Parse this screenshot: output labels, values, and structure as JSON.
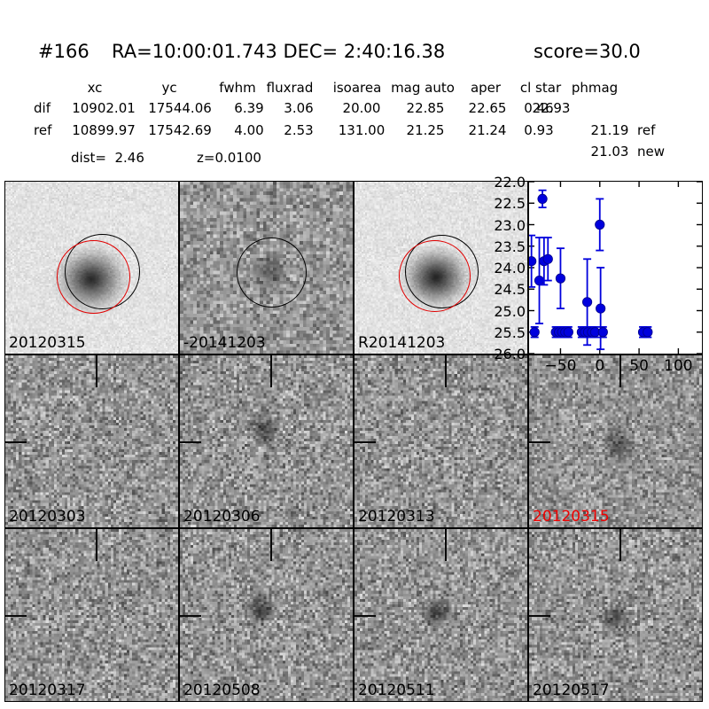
{
  "header": {
    "object_id": "#166",
    "coords": "RA=10:00:01.743 DEC= 2:40:16.38",
    "score": "score=30.0"
  },
  "photometry": {
    "columns": [
      "xc",
      "yc",
      "fwhm",
      "fluxrad",
      "isoarea",
      "mag auto",
      "aper",
      "cl star",
      "phmag"
    ],
    "rows": [
      {
        "label": "dif",
        "cells": [
          "10902.01",
          "17544.06",
          "6.39",
          "3.06",
          "20.00",
          "22.85",
          "22.65",
          "0.46",
          "22.93"
        ],
        "suffix": ""
      },
      {
        "label": "ref",
        "cells": [
          "10899.97",
          "17542.69",
          "4.00",
          "2.53",
          "131.00",
          "21.25",
          "21.24",
          "0.93",
          "21.19"
        ],
        "suffix": "ref"
      }
    ],
    "extra_phmag": {
      "value": "21.03",
      "suffix": "new"
    },
    "dist": "dist=  2.46",
    "z": "z=0.0100"
  },
  "panels": [
    {
      "label": "20120315",
      "label_color": "#000000",
      "kind": "new-image"
    },
    {
      "label": "-20141203",
      "label_color": "#000000",
      "kind": "difference-image"
    },
    {
      "label": "R20141203",
      "label_color": "#000000",
      "kind": "reference-image"
    },
    {
      "label": "",
      "label_color": "#000000",
      "kind": "lightcurve-plot"
    },
    {
      "label": "20120303",
      "label_color": "#000000",
      "kind": "epoch-cutout"
    },
    {
      "label": "20120306",
      "label_color": "#000000",
      "kind": "epoch-cutout"
    },
    {
      "label": "20120313",
      "label_color": "#000000",
      "kind": "epoch-cutout"
    },
    {
      "label": "20120315",
      "label_color": "#ee0000",
      "kind": "epoch-cutout-detection"
    },
    {
      "label": "20120317",
      "label_color": "#000000",
      "kind": "epoch-cutout"
    },
    {
      "label": "20120508",
      "label_color": "#000000",
      "kind": "epoch-cutout"
    },
    {
      "label": "20120511",
      "label_color": "#000000",
      "kind": "epoch-cutout"
    },
    {
      "label": "20120517",
      "label_color": "#000000",
      "kind": "epoch-cutout"
    }
  ],
  "chart_data": {
    "type": "scatter",
    "title": "",
    "xlabel": "",
    "ylabel": "",
    "xlim": [
      -90,
      130
    ],
    "ylim": [
      22.0,
      26.0
    ],
    "y_inverted": true,
    "grid": false,
    "legend": "none",
    "xticks": [
      -50,
      0,
      50,
      100
    ],
    "xtick_labels": [
      "−50",
      "0",
      "50",
      "100"
    ],
    "yticks": [
      22.0,
      22.5,
      23.0,
      23.5,
      24.0,
      24.5,
      25.0,
      25.5,
      26.0
    ],
    "ytick_labels": [
      "22.0",
      "22.5",
      "23.0",
      "23.5",
      "24.0",
      "24.5",
      "25.0",
      "25.5",
      "26.0"
    ],
    "marker_color": "#0000dd",
    "marker_edge": "#000088",
    "series": [
      {
        "name": "detections",
        "points": [
          [
            -87,
            23.85,
            0.6
          ],
          [
            -77,
            24.3,
            1.0
          ],
          [
            -73,
            22.4,
            0.2
          ],
          [
            -71,
            23.85,
            0.55
          ],
          [
            -66,
            23.8,
            0.5
          ],
          [
            -50,
            24.25,
            0.7
          ],
          [
            -16,
            24.8,
            1.0
          ],
          [
            0,
            23.0,
            0.6
          ],
          [
            1,
            24.95,
            0.95
          ]
        ]
      },
      {
        "name": "faint-limits",
        "points": [
          [
            -83,
            25.5,
            0.12
          ],
          [
            -56,
            25.5,
            0.12
          ],
          [
            -52,
            25.5,
            0.12
          ],
          [
            -48,
            25.5,
            0.12
          ],
          [
            -44,
            25.5,
            0.12
          ],
          [
            -40,
            25.5,
            0.12
          ],
          [
            -23,
            25.5,
            0.12
          ],
          [
            -19,
            25.5,
            0.12
          ],
          [
            -15,
            25.5,
            0.12
          ],
          [
            -10,
            25.5,
            0.12
          ],
          [
            -6,
            25.5,
            0.12
          ],
          [
            4,
            25.5,
            0.12
          ],
          [
            55,
            25.5,
            0.12
          ],
          [
            61,
            25.5,
            0.12
          ]
        ]
      }
    ]
  }
}
